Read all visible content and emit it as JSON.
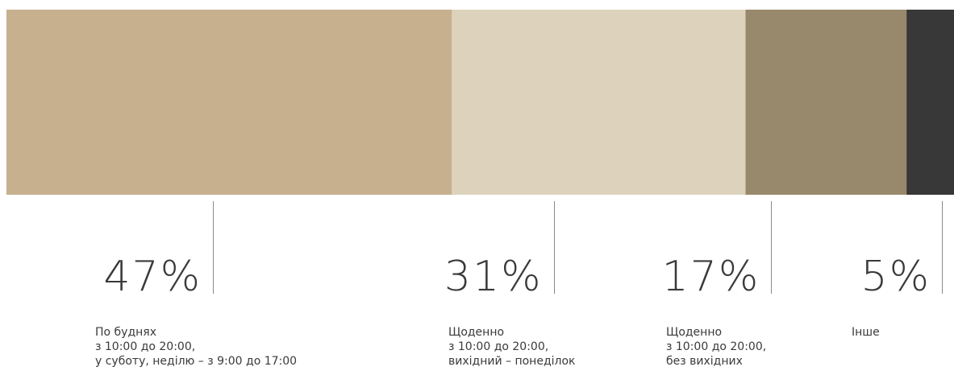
{
  "chart_data": {
    "type": "bar",
    "orientation": "horizontal-stacked",
    "title": "",
    "xlabel": "",
    "ylabel": "",
    "series": [
      {
        "value": 47,
        "percent_label": "47%",
        "description": "По буднях\nз 10:00 до 20:00,\nу суботу, неділю – з 9:00 до 17:00",
        "color": "#c6b08e"
      },
      {
        "value": 31,
        "percent_label": "31%",
        "description": "Щоденно\nз 10:00 до 20:00,\nвихідний – понеділок",
        "color": "#ddd3bd"
      },
      {
        "value": 17,
        "percent_label": "17%",
        "description": "Щоденно\nз 10:00 до 20:00,\nбез вихідних",
        "color": "#99896c"
      },
      {
        "value": 5,
        "percent_label": "5%",
        "description": "Інше",
        "color": "#383838"
      }
    ]
  }
}
